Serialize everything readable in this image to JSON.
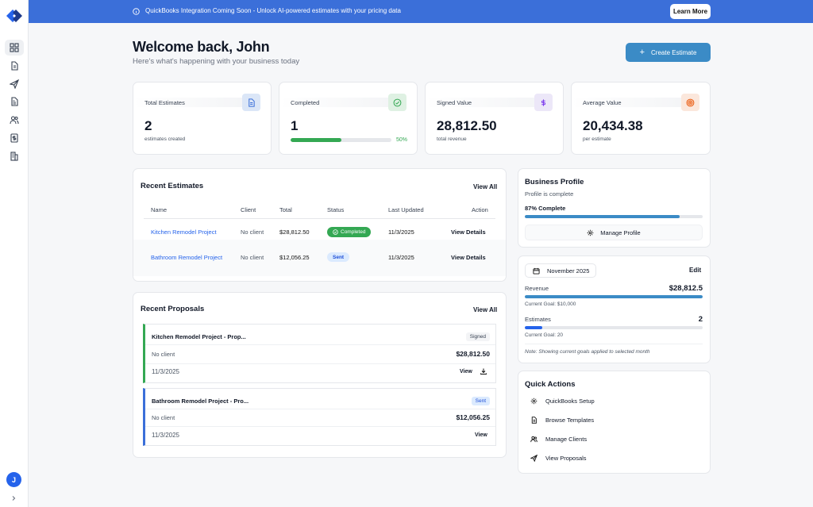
{
  "banner": {
    "text": "QuickBooks Integration Coming Soon - Unlock AI-powered estimates with your pricing data",
    "button": "Learn More"
  },
  "user": {
    "initial": "J"
  },
  "header": {
    "title": "Welcome back, John",
    "subtitle": "Here's what's happening with your business today",
    "create_button": "Create Estimate"
  },
  "stats": [
    {
      "label": "Total Estimates",
      "value": "2",
      "note": "estimates created",
      "icon": "document-icon"
    },
    {
      "label": "Completed",
      "value": "1",
      "percent_label": "50%",
      "progress": 0.5,
      "icon": "check-circle-icon"
    },
    {
      "label": "Signed Value",
      "value": "28,812.50",
      "note": "total revenue",
      "icon": "dollar-icon"
    },
    {
      "label": "Average Value",
      "value": "20,434.38",
      "note": "per estimate",
      "icon": "target-icon"
    }
  ],
  "recent_estimates": {
    "title": "Recent Estimates",
    "view_all": "View All",
    "columns": [
      "Name",
      "Client",
      "Total",
      "Status",
      "Last Updated",
      "Action"
    ],
    "rows": [
      {
        "name": "Kitchen Remodel Project",
        "client": "No client",
        "total": "$28,812.50",
        "status": "Completed",
        "updated": "11/3/2025",
        "action": "View Details"
      },
      {
        "name": "Bathroom Remodel Project",
        "client": "No client",
        "total": "$12,056.25",
        "status": "Sent",
        "updated": "11/3/2025",
        "action": "View Details"
      }
    ]
  },
  "recent_proposals": {
    "title": "Recent Proposals",
    "view_all": "View All",
    "items": [
      {
        "title": "Kitchen Remodel Project - Prop...",
        "status": "Signed",
        "client": "No client",
        "amount": "$28,812.50",
        "date": "11/3/2025",
        "view": "View"
      },
      {
        "title": "Bathroom Remodel Project - Pro...",
        "status": "Sent",
        "client": "No client",
        "amount": "$12,056.25",
        "date": "11/3/2025",
        "view": "View"
      }
    ]
  },
  "business_profile": {
    "title": "Business Profile",
    "subtitle": "Profile is complete",
    "progress_label": "87% Complete",
    "progress": 0.87,
    "button": "Manage Profile"
  },
  "goals": {
    "month": "November 2025",
    "edit": "Edit",
    "revenue": {
      "label": "Revenue",
      "value": "$28,812.5",
      "goal": "Current Goal: $10,000",
      "progress": 1.0
    },
    "estimates": {
      "label": "Estimates",
      "value": "2",
      "goal": "Current Goal: 20",
      "progress": 0.1
    },
    "note": "Note: Showing current goals applied to selected month"
  },
  "quick_actions": {
    "title": "Quick Actions",
    "items": [
      {
        "label": "QuickBooks Setup",
        "icon": "gear-icon"
      },
      {
        "label": "Browse Templates",
        "icon": "document-icon"
      },
      {
        "label": "Manage Clients",
        "icon": "users-icon"
      },
      {
        "label": "View Proposals",
        "icon": "send-icon"
      }
    ]
  },
  "colors": {
    "banner": "#3b6fd9",
    "primary": "#3b8bc6",
    "success": "#34a853",
    "link": "#2563eb"
  }
}
